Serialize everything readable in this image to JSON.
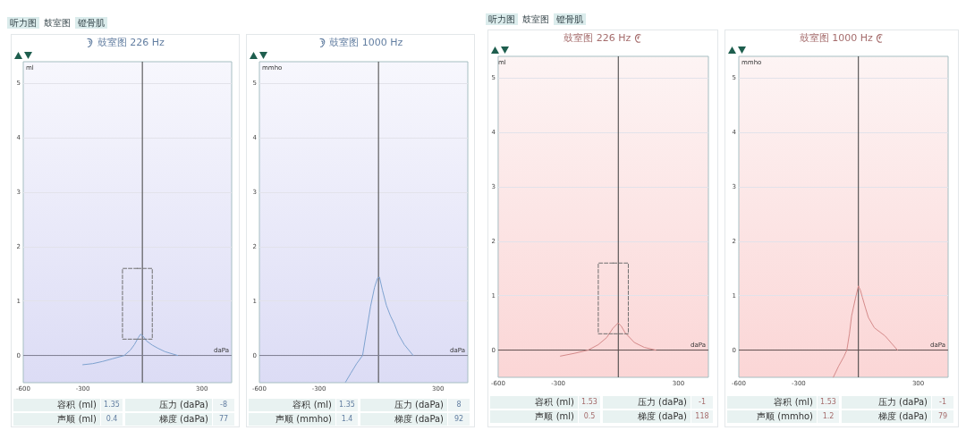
{
  "chart_data": [
    {
      "type": "other",
      "annotations": [
        "听力图",
        "鼓室图",
        "镫骨肌"
      ]
    },
    {
      "type": "line",
      "title": "鼓室图 226 Hz",
      "xlabel": "daPa",
      "ylabel": "ml",
      "xlim": [
        -600,
        450
      ],
      "ylim": [
        -0.5,
        5.4
      ],
      "xticks": [
        -600,
        -300,
        300
      ],
      "yticks": [
        0,
        1,
        2,
        3,
        4,
        5
      ],
      "grid": "y",
      "marker": "none",
      "ref_lines": [
        {
          "axis": "x",
          "value": 0,
          "color": "#404040"
        },
        {
          "axis": "y",
          "value": 0,
          "color": "#7c7c92"
        }
      ],
      "series": [
        {
          "color": "#7ea2cf",
          "x": [
            -300,
            -250,
            -200,
            -150,
            -91,
            -60,
            -40,
            -20,
            -9,
            5,
            20,
            50,
            80,
            114,
            178
          ],
          "values": [
            -0.17,
            -0.15,
            -0.11,
            -0.06,
            0,
            0.1,
            0.2,
            0.33,
            0.39,
            0.35,
            0.27,
            0.19,
            0.13,
            0.07,
            0
          ]
        },
        {
          "color": "#6e6e6e",
          "line_style": "dashed",
          "x": [
            -25,
            -100,
            -100,
            -25
          ],
          "values": [
            1.6,
            1.6,
            0.3,
            0.3
          ]
        },
        {
          "color": "#6e6e6e",
          "line_style": "dashed",
          "x": [
            -25,
            50,
            50,
            -25
          ],
          "values": [
            1.6,
            1.6,
            0.3,
            0.3
          ]
        }
      ],
      "annotations": [
        "容积 (ml) 1.35",
        "压力 (daPa) -8",
        "声顺 (ml) 0.4",
        "梯度 (daPa) 77"
      ]
    },
    {
      "type": "line",
      "title": "鼓室图 1000 Hz",
      "xlabel": "daPa",
      "ylabel": "mmho",
      "xlim": [
        -600,
        450
      ],
      "ylim": [
        -0.5,
        5.4
      ],
      "xticks": [
        -600,
        -300,
        300
      ],
      "yticks": [
        0,
        1,
        2,
        3,
        4,
        5
      ],
      "grid": "y",
      "marker": "none",
      "ref_lines": [
        {
          "axis": "x",
          "value": 0,
          "color": "#404040"
        },
        {
          "axis": "y",
          "value": 0,
          "color": "#7c7c92"
        }
      ],
      "series": [
        {
          "color": "#7ea2cf",
          "x": [
            -166,
            -140,
            -110,
            -80,
            -60,
            -40,
            -20,
            -5,
            5,
            20,
            40,
            60,
            80,
            100,
            130,
            175
          ],
          "values": [
            -0.49,
            -0.33,
            -0.15,
            0,
            0.45,
            0.9,
            1.25,
            1.42,
            1.44,
            1.2,
            0.92,
            0.73,
            0.58,
            0.39,
            0.2,
            0
          ]
        }
      ],
      "annotations": [
        "容积 (ml) 1.35",
        "压力 (daPa) 8",
        "声顺 (mmho) 1.4",
        "梯度 (daPa) 92"
      ]
    },
    {
      "type": "other",
      "annotations": [
        "听力图",
        "鼓室图",
        "镫骨肌"
      ]
    },
    {
      "type": "line",
      "title": "鼓室图 226 Hz",
      "xlabel": "daPa",
      "ylabel": "ml",
      "xlim": [
        -600,
        450
      ],
      "ylim": [
        -0.5,
        5.4
      ],
      "xticks": [
        -600,
        -300,
        300
      ],
      "yticks": [
        0,
        1,
        2,
        3,
        4,
        5
      ],
      "grid": "y",
      "marker": "none",
      "ref_lines": [
        {
          "axis": "x",
          "value": 0,
          "color": "#3c3c3c"
        },
        {
          "axis": "y",
          "value": 0,
          "color": "#5e4c4c"
        }
      ],
      "series": [
        {
          "color": "#d48a8a",
          "x": [
            -289,
            -220,
            -151,
            -100,
            -58,
            -27,
            -1,
            15,
            34,
            80,
            130,
            187
          ],
          "values": [
            -0.11,
            -0.06,
            0,
            0.1,
            0.23,
            0.4,
            0.5,
            0.44,
            0.32,
            0.14,
            0.05,
            0
          ]
        },
        {
          "color": "#6e6e6e",
          "line_style": "dashed",
          "x": [
            -25,
            -100,
            -100,
            -25
          ],
          "values": [
            1.6,
            1.6,
            0.3,
            0.3
          ]
        },
        {
          "color": "#6e6e6e",
          "line_style": "dashed",
          "x": [
            -25,
            50,
            50,
            -25
          ],
          "values": [
            1.6,
            1.6,
            0.3,
            0.3
          ]
        }
      ],
      "annotations": [
        "容积 (ml) 1.53",
        "压力 (daPa) -1",
        "声顺 (ml) 0.5",
        "梯度 (daPa) 118"
      ]
    },
    {
      "type": "line",
      "title": "鼓室图 1000 Hz",
      "xlabel": "daPa",
      "ylabel": "mmho",
      "xlim": [
        -600,
        450
      ],
      "ylim": [
        -0.5,
        5.4
      ],
      "xticks": [
        -600,
        -300,
        300
      ],
      "yticks": [
        0,
        1,
        2,
        3,
        4,
        5
      ],
      "grid": "y",
      "marker": "none",
      "ref_lines": [
        {
          "axis": "x",
          "value": 0,
          "color": "#3c3c3c"
        },
        {
          "axis": "y",
          "value": 0,
          "color": "#5e4c4c"
        }
      ],
      "series": [
        {
          "color": "#d48a8a",
          "x": [
            -126,
            -100,
            -73,
            -58,
            -45,
            -34,
            -15,
            0,
            10,
            20,
            35,
            50,
            80,
            134,
            196
          ],
          "values": [
            -0.5,
            -0.3,
            -0.12,
            0,
            0.3,
            0.63,
            0.95,
            1.18,
            1.1,
            0.97,
            0.78,
            0.6,
            0.41,
            0.26,
            0
          ]
        }
      ],
      "annotations": [
        "容积 (ml) 1.53",
        "压力 (daPa) -1",
        "声顺 (mmho) 1.2",
        "梯度 (daPa) 79"
      ]
    }
  ]
}
